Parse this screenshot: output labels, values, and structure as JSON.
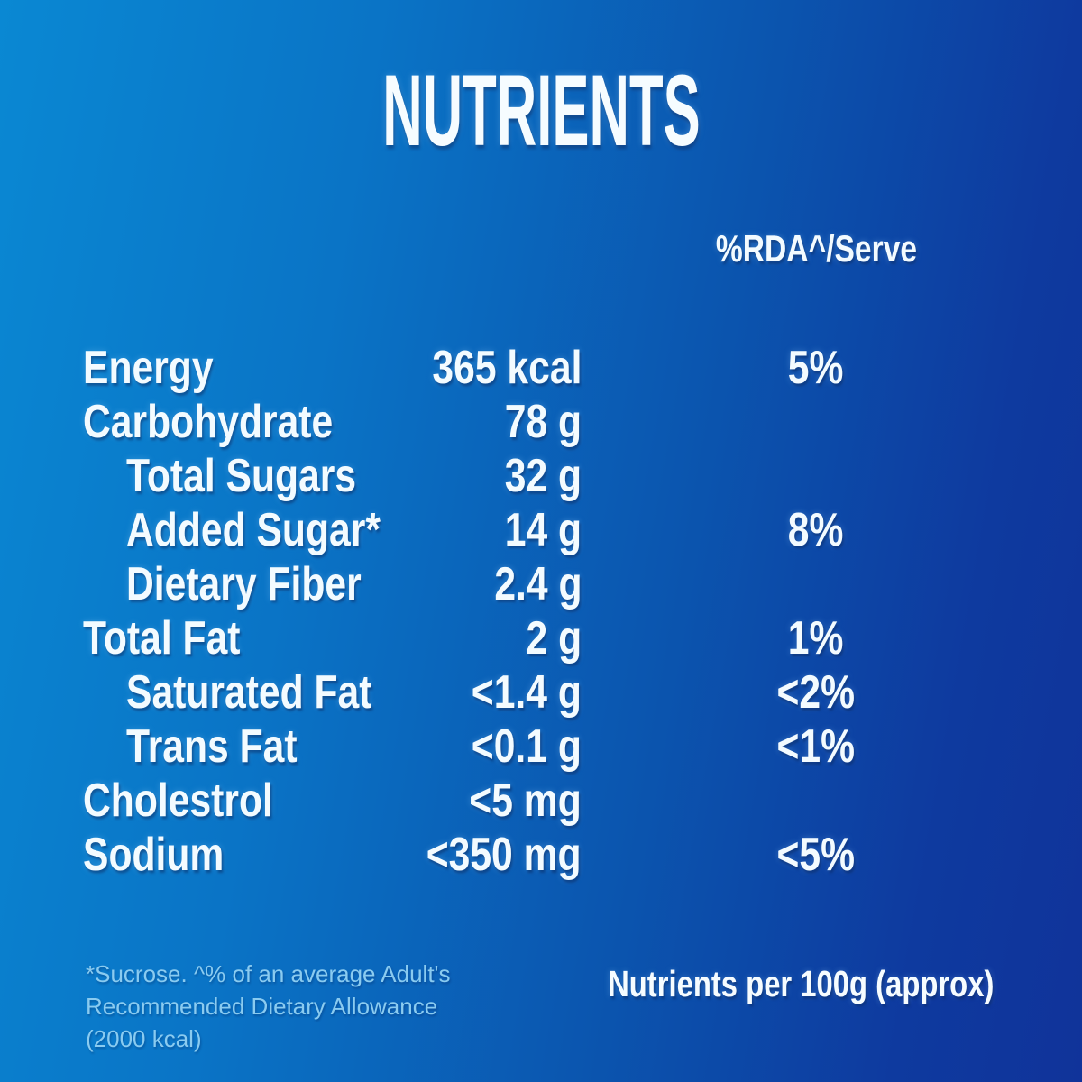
{
  "title": "NUTRIENTS",
  "table": {
    "rda_header": "%RDA^/Serve",
    "rows": [
      {
        "label": "Energy",
        "value": "365 kcal",
        "rda": "5%"
      },
      {
        "label": "Carbohydrate",
        "value": "78 g",
        "rda": ""
      },
      {
        "label": "Total Sugars",
        "value": "32 g",
        "rda": ""
      },
      {
        "label": "Added Sugar*",
        "value": "14 g",
        "rda": "8%"
      },
      {
        "label": "Dietary Fiber",
        "value": "2.4 g",
        "rda": ""
      },
      {
        "label": "Total Fat",
        "value": "2 g",
        "rda": "1%"
      },
      {
        "label": "Saturated Fat",
        "value": "<1.4 g",
        "rda": "<2%"
      },
      {
        "label": "Trans Fat",
        "value": "<0.1 g",
        "rda": "<1%"
      },
      {
        "label": "Cholestrol",
        "value": "<5 mg",
        "rda": ""
      },
      {
        "label": "Sodium",
        "value": "<350 mg",
        "rda": "<5%"
      }
    ]
  },
  "footer": {
    "note": "*Sucrose. ^% of an average Adult's Recommended Dietary Allowance (2000 kcal)",
    "serving_note": "Nutrients per 100g (approx)"
  },
  "colors": {
    "bg_gradient_start": "#0a88d3",
    "bg_gradient_end": "#10339a",
    "text_primary": "#f3fbff",
    "note_text": "#8acbf0"
  }
}
